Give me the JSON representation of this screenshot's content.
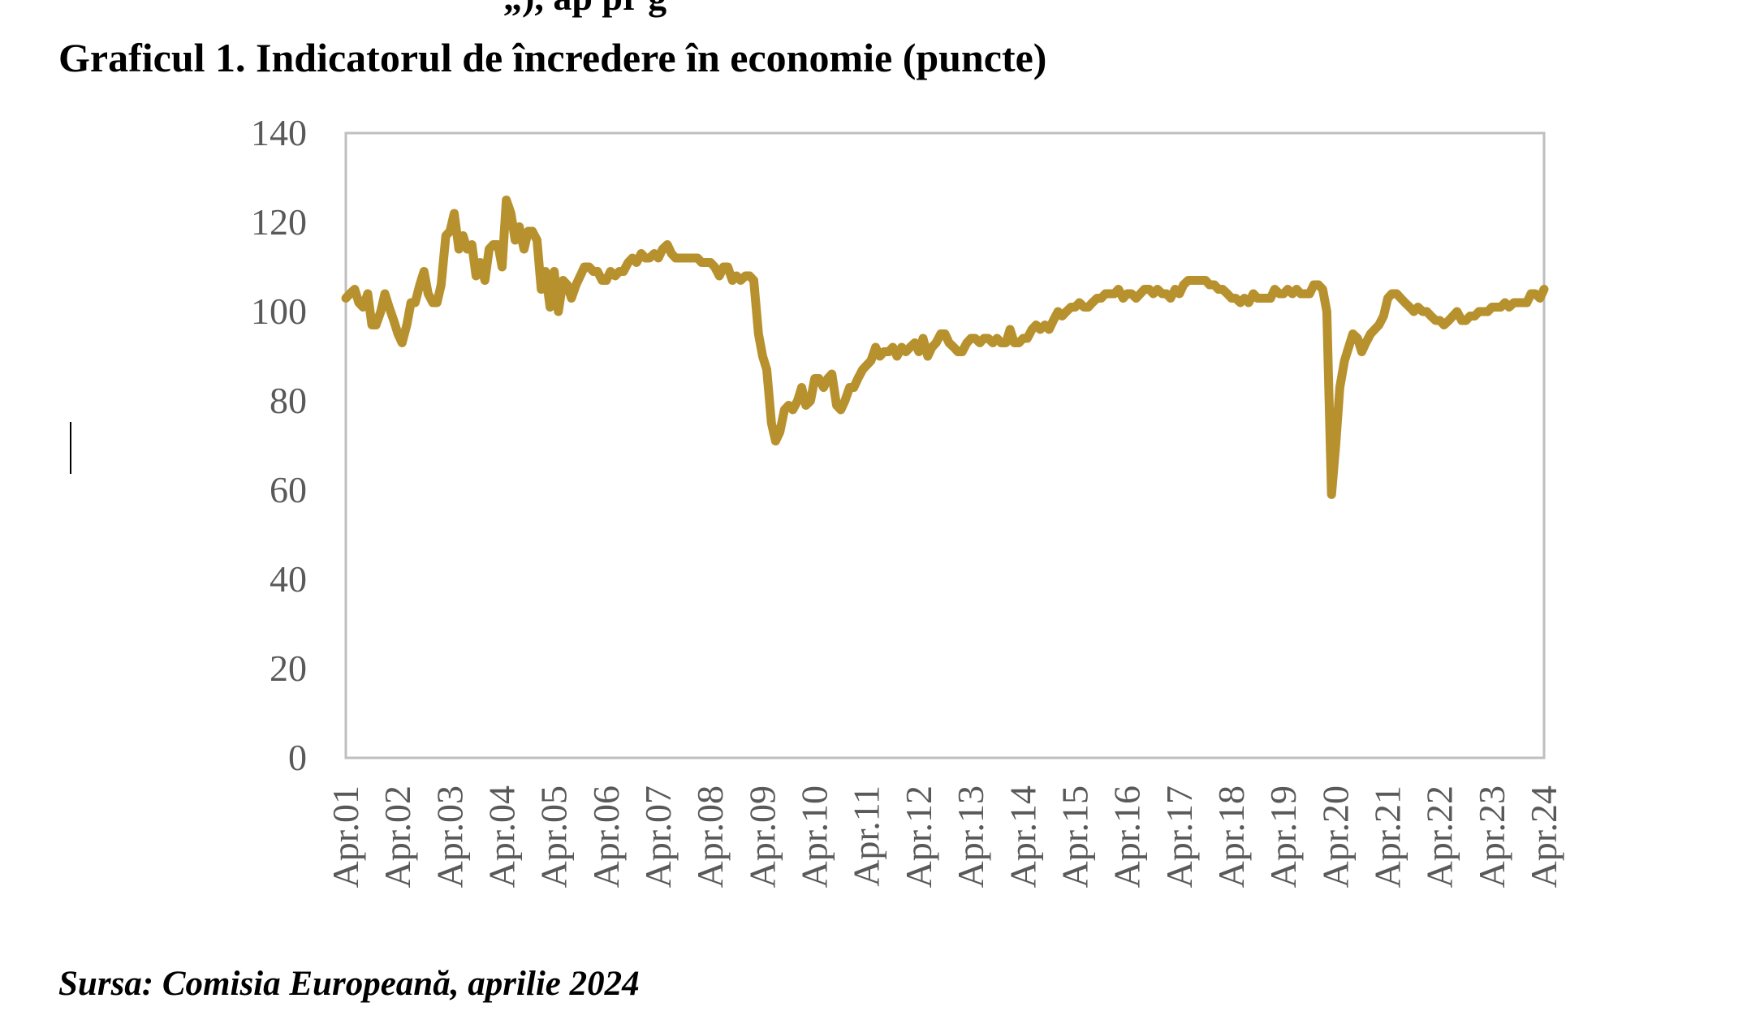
{
  "page": {
    "top_fragment": "„), ap          pr          g",
    "title": "Graficul 1. Indicatorul de încredere în economie (puncte)",
    "source": "Sursa: Comisia Europeană, aprilie 2024"
  },
  "colors": {
    "series_line": "#B8912F",
    "axis_frame": "#BFBFBF",
    "tick_text": "#595959"
  },
  "chart_data": {
    "type": "line",
    "title": "Graficul 1. Indicatorul de încredere în economie (puncte)",
    "xlabel": "",
    "ylabel": "",
    "ylim": [
      0,
      140
    ],
    "yticks": [
      0,
      20,
      40,
      60,
      80,
      100,
      120,
      140
    ],
    "categories": [
      "Apr.01",
      "Apr.02",
      "Apr.03",
      "Apr.04",
      "Apr.05",
      "Apr.06",
      "Apr.07",
      "Apr.08",
      "Apr.09",
      "Apr.10",
      "Apr.11",
      "Apr.12",
      "Apr.13",
      "Apr.14",
      "Apr.15",
      "Apr.16",
      "Apr.17",
      "Apr.18",
      "Apr.19",
      "Apr.20",
      "Apr.21",
      "Apr.22",
      "Apr.23",
      "Apr.24"
    ],
    "grid": false,
    "legend": "none",
    "series": [
      {
        "points": [
          [
            0.0,
            103
          ],
          [
            0.08,
            104
          ],
          [
            0.17,
            105
          ],
          [
            0.25,
            102
          ],
          [
            0.33,
            101
          ],
          [
            0.42,
            104
          ],
          [
            0.5,
            97
          ],
          [
            0.58,
            97
          ],
          [
            0.67,
            100
          ],
          [
            0.75,
            104
          ],
          [
            0.83,
            101
          ],
          [
            0.92,
            98
          ],
          [
            1.0,
            95
          ],
          [
            1.08,
            93
          ],
          [
            1.17,
            97
          ],
          [
            1.25,
            102
          ],
          [
            1.33,
            102
          ],
          [
            1.42,
            106
          ],
          [
            1.5,
            109
          ],
          [
            1.58,
            104
          ],
          [
            1.67,
            102
          ],
          [
            1.75,
            102
          ],
          [
            1.83,
            106
          ],
          [
            1.92,
            117
          ],
          [
            2.0,
            118
          ],
          [
            2.08,
            122
          ],
          [
            2.17,
            114
          ],
          [
            2.25,
            117
          ],
          [
            2.33,
            114
          ],
          [
            2.42,
            115
          ],
          [
            2.5,
            108
          ],
          [
            2.58,
            111
          ],
          [
            2.67,
            107
          ],
          [
            2.75,
            114
          ],
          [
            2.83,
            115
          ],
          [
            2.92,
            115
          ],
          [
            3.0,
            110
          ],
          [
            3.08,
            125
          ],
          [
            3.17,
            122
          ],
          [
            3.25,
            116
          ],
          [
            3.33,
            119
          ],
          [
            3.42,
            114
          ],
          [
            3.5,
            118
          ],
          [
            3.58,
            118
          ],
          [
            3.67,
            116
          ],
          [
            3.75,
            105
          ],
          [
            3.83,
            109
          ],
          [
            3.92,
            101
          ],
          [
            4.0,
            109
          ],
          [
            4.08,
            100
          ],
          [
            4.17,
            107
          ],
          [
            4.25,
            106
          ],
          [
            4.33,
            103
          ],
          [
            4.42,
            106
          ],
          [
            4.5,
            108
          ],
          [
            4.58,
            110
          ],
          [
            4.67,
            110
          ],
          [
            4.75,
            109
          ],
          [
            4.83,
            109
          ],
          [
            4.92,
            107
          ],
          [
            5.0,
            107
          ],
          [
            5.08,
            109
          ],
          [
            5.17,
            108
          ],
          [
            5.25,
            109
          ],
          [
            5.33,
            109
          ],
          [
            5.42,
            111
          ],
          [
            5.5,
            112
          ],
          [
            5.58,
            111
          ],
          [
            5.67,
            113
          ],
          [
            5.75,
            112
          ],
          [
            5.83,
            112
          ],
          [
            5.92,
            113
          ],
          [
            6.0,
            112
          ],
          [
            6.08,
            114
          ],
          [
            6.17,
            115
          ],
          [
            6.25,
            113
          ],
          [
            6.33,
            112
          ],
          [
            6.42,
            112
          ],
          [
            6.5,
            112
          ],
          [
            6.58,
            112
          ],
          [
            6.67,
            112
          ],
          [
            6.75,
            112
          ],
          [
            6.83,
            111
          ],
          [
            6.92,
            111
          ],
          [
            7.0,
            111
          ],
          [
            7.08,
            110
          ],
          [
            7.17,
            108
          ],
          [
            7.25,
            110
          ],
          [
            7.33,
            110
          ],
          [
            7.42,
            107
          ],
          [
            7.5,
            108
          ],
          [
            7.58,
            107
          ],
          [
            7.67,
            108
          ],
          [
            7.75,
            108
          ],
          [
            7.83,
            107
          ],
          [
            7.92,
            95
          ],
          [
            8.0,
            90
          ],
          [
            8.08,
            87
          ],
          [
            8.17,
            75
          ],
          [
            8.25,
            71
          ],
          [
            8.33,
            73
          ],
          [
            8.42,
            78
          ],
          [
            8.5,
            79
          ],
          [
            8.58,
            78
          ],
          [
            8.67,
            80
          ],
          [
            8.75,
            83
          ],
          [
            8.83,
            79
          ],
          [
            8.92,
            80
          ],
          [
            9.0,
            85
          ],
          [
            9.08,
            85
          ],
          [
            9.17,
            83
          ],
          [
            9.25,
            85
          ],
          [
            9.33,
            86
          ],
          [
            9.42,
            79
          ],
          [
            9.5,
            78
          ],
          [
            9.58,
            80
          ],
          [
            9.67,
            83
          ],
          [
            9.75,
            83
          ],
          [
            9.83,
            85
          ],
          [
            9.92,
            87
          ],
          [
            10.0,
            88
          ],
          [
            10.08,
            89
          ],
          [
            10.17,
            92
          ],
          [
            10.25,
            90
          ],
          [
            10.33,
            91
          ],
          [
            10.42,
            91
          ],
          [
            10.5,
            92
          ],
          [
            10.58,
            90
          ],
          [
            10.67,
            92
          ],
          [
            10.75,
            91
          ],
          [
            10.83,
            92
          ],
          [
            10.92,
            93
          ],
          [
            11.0,
            91
          ],
          [
            11.08,
            94
          ],
          [
            11.17,
            90
          ],
          [
            11.25,
            92
          ],
          [
            11.33,
            93
          ],
          [
            11.42,
            95
          ],
          [
            11.5,
            95
          ],
          [
            11.58,
            93
          ],
          [
            11.67,
            92
          ],
          [
            11.75,
            91
          ],
          [
            11.83,
            91
          ],
          [
            11.92,
            93
          ],
          [
            12.0,
            94
          ],
          [
            12.08,
            94
          ],
          [
            12.17,
            93
          ],
          [
            12.25,
            94
          ],
          [
            12.33,
            94
          ],
          [
            12.42,
            93
          ],
          [
            12.5,
            94
          ],
          [
            12.58,
            93
          ],
          [
            12.67,
            93
          ],
          [
            12.75,
            96
          ],
          [
            12.83,
            93
          ],
          [
            12.92,
            93
          ],
          [
            13.0,
            94
          ],
          [
            13.08,
            94
          ],
          [
            13.17,
            96
          ],
          [
            13.25,
            97
          ],
          [
            13.33,
            96
          ],
          [
            13.42,
            97
          ],
          [
            13.5,
            96
          ],
          [
            13.58,
            98
          ],
          [
            13.67,
            100
          ],
          [
            13.75,
            99
          ],
          [
            13.83,
            100
          ],
          [
            13.92,
            101
          ],
          [
            14.0,
            101
          ],
          [
            14.08,
            102
          ],
          [
            14.17,
            101
          ],
          [
            14.25,
            101
          ],
          [
            14.33,
            102
          ],
          [
            14.42,
            103
          ],
          [
            14.5,
            103
          ],
          [
            14.58,
            104
          ],
          [
            14.67,
            104
          ],
          [
            14.75,
            104
          ],
          [
            14.83,
            105
          ],
          [
            14.92,
            103
          ],
          [
            15.0,
            104
          ],
          [
            15.08,
            104
          ],
          [
            15.17,
            103
          ],
          [
            15.25,
            104
          ],
          [
            15.33,
            105
          ],
          [
            15.42,
            105
          ],
          [
            15.5,
            104
          ],
          [
            15.58,
            105
          ],
          [
            15.67,
            104
          ],
          [
            15.75,
            104
          ],
          [
            15.83,
            103
          ],
          [
            15.92,
            105
          ],
          [
            16.0,
            104
          ],
          [
            16.08,
            106
          ],
          [
            16.17,
            107
          ],
          [
            16.25,
            107
          ],
          [
            16.33,
            107
          ],
          [
            16.42,
            107
          ],
          [
            16.5,
            107
          ],
          [
            16.58,
            106
          ],
          [
            16.67,
            106
          ],
          [
            16.75,
            105
          ],
          [
            16.83,
            105
          ],
          [
            16.92,
            104
          ],
          [
            17.0,
            103
          ],
          [
            17.08,
            103
          ],
          [
            17.17,
            102
          ],
          [
            17.25,
            103
          ],
          [
            17.33,
            102
          ],
          [
            17.42,
            104
          ],
          [
            17.5,
            103
          ],
          [
            17.58,
            103
          ],
          [
            17.67,
            103
          ],
          [
            17.75,
            103
          ],
          [
            17.83,
            105
          ],
          [
            17.92,
            104
          ],
          [
            18.0,
            104
          ],
          [
            18.08,
            105
          ],
          [
            18.17,
            104
          ],
          [
            18.25,
            105
          ],
          [
            18.33,
            104
          ],
          [
            18.42,
            104
          ],
          [
            18.5,
            104
          ],
          [
            18.58,
            106
          ],
          [
            18.67,
            106
          ],
          [
            18.75,
            105
          ],
          [
            18.83,
            100
          ],
          [
            18.92,
            59
          ],
          [
            19.0,
            70
          ],
          [
            19.08,
            83
          ],
          [
            19.17,
            89
          ],
          [
            19.25,
            92
          ],
          [
            19.33,
            95
          ],
          [
            19.42,
            94
          ],
          [
            19.5,
            91
          ],
          [
            19.58,
            93
          ],
          [
            19.67,
            95
          ],
          [
            19.75,
            96
          ],
          [
            19.83,
            97
          ],
          [
            19.92,
            99
          ],
          [
            20.0,
            103
          ],
          [
            20.08,
            104
          ],
          [
            20.17,
            104
          ],
          [
            20.25,
            103
          ],
          [
            20.33,
            102
          ],
          [
            20.42,
            101
          ],
          [
            20.5,
            100
          ],
          [
            20.58,
            101
          ],
          [
            20.67,
            100
          ],
          [
            20.75,
            100
          ],
          [
            20.83,
            99
          ],
          [
            20.92,
            98
          ],
          [
            21.0,
            98
          ],
          [
            21.08,
            97
          ],
          [
            21.17,
            98
          ],
          [
            21.25,
            99
          ],
          [
            21.33,
            100
          ],
          [
            21.42,
            98
          ],
          [
            21.5,
            98
          ],
          [
            21.58,
            99
          ],
          [
            21.67,
            99
          ],
          [
            21.75,
            100
          ],
          [
            21.83,
            100
          ],
          [
            21.92,
            100
          ],
          [
            22.0,
            101
          ],
          [
            22.08,
            101
          ],
          [
            22.17,
            101
          ],
          [
            22.25,
            102
          ],
          [
            22.33,
            101
          ],
          [
            22.42,
            102
          ],
          [
            22.5,
            102
          ],
          [
            22.58,
            102
          ],
          [
            22.67,
            102
          ],
          [
            22.75,
            104
          ],
          [
            22.83,
            104
          ],
          [
            22.92,
            103
          ],
          [
            23.0,
            105
          ]
        ]
      }
    ]
  }
}
